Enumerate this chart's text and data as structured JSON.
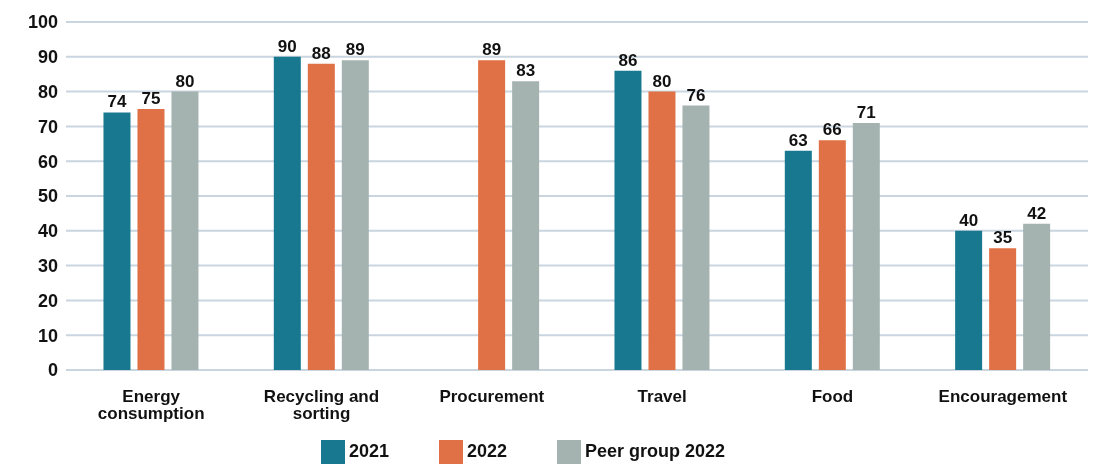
{
  "chart_data": {
    "type": "bar",
    "categories": [
      "Energy consumption",
      "Recycling and sorting",
      "Procurement",
      "Travel",
      "Food",
      "Encouragement"
    ],
    "series": [
      {
        "name": "2021",
        "color": "#17788f",
        "values": [
          74,
          90,
          null,
          86,
          63,
          40
        ]
      },
      {
        "name": "2022",
        "color": "#e07045",
        "values": [
          75,
          88,
          89,
          80,
          66,
          35
        ]
      },
      {
        "name": "Peer group 2022",
        "color": "#a4b3b0",
        "values": [
          80,
          89,
          83,
          76,
          71,
          42
        ]
      }
    ],
    "ylim": [
      0,
      100
    ],
    "yticks": [
      0,
      10,
      20,
      30,
      40,
      50,
      60,
      70,
      80,
      90,
      100
    ],
    "grid": "y",
    "legend": "bottom",
    "data_labels": true
  }
}
